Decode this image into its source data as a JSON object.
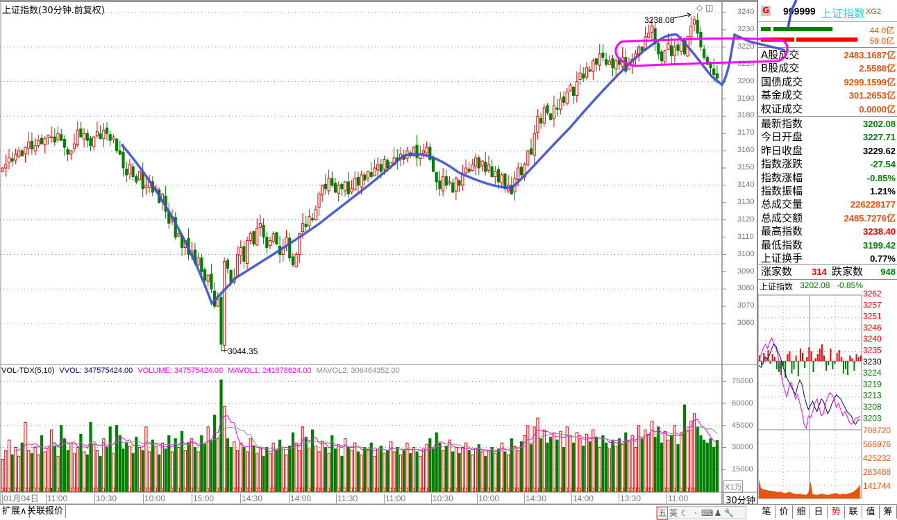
{
  "header": {
    "title": "上证指数(30分钟.前复权)",
    "high_mark": "3238.08",
    "low_mark": "3044.35"
  },
  "price_axis": [
    "3240",
    "3230",
    "3220",
    "3210",
    "3200",
    "3190",
    "3180",
    "3170",
    "3160",
    "3150",
    "3140",
    "3130",
    "3120",
    "3110",
    "3100",
    "3090",
    "3080",
    "3070",
    "3060"
  ],
  "volume_axis": [
    "75000",
    "60000",
    "45000",
    "30000",
    "15000"
  ],
  "volume_unit": "X1万",
  "period": "30分钟",
  "volume_legend": {
    "name": "VOL-TDX(5,10)",
    "vvol": "VVOL: 347575424.00",
    "volume": "VOLUME: 347575424.00",
    "mavol1": "MAVOL1: 241878624.00",
    "mavol2": "MAVOL2: 306464352.00"
  },
  "time_axis": [
    "01月04日",
    "11:00",
    "10:30",
    "10:00",
    "15:00",
    "14:30",
    "14:00",
    "11:30",
    "11:00",
    "10:30",
    "10:00",
    "14:30",
    "14:00",
    "13:30",
    "11:00"
  ],
  "chart_data": {
    "type": "candlestick",
    "ylim": [
      3040,
      3245
    ],
    "closes": [
      3150,
      3152,
      3156,
      3154,
      3158,
      3160,
      3157,
      3162,
      3165,
      3161,
      3163,
      3166,
      3164,
      3167,
      3169,
      3168,
      3165,
      3170,
      3166,
      3162,
      3158,
      3160,
      3164,
      3172,
      3168,
      3170,
      3166,
      3163,
      3168,
      3171,
      3167,
      3172,
      3170,
      3166,
      3168,
      3160,
      3158,
      3150,
      3146,
      3152,
      3145,
      3142,
      3148,
      3138,
      3140,
      3142,
      3136,
      3138,
      3130,
      3135,
      3125,
      3118,
      3122,
      3110,
      3112,
      3104,
      3108,
      3100,
      3102,
      3095,
      3098,
      3090,
      3085,
      3088,
      3080,
      3070,
      3074,
      3048,
      3096,
      3092,
      3084,
      3086,
      3100,
      3104,
      3096,
      3108,
      3112,
      3106,
      3115,
      3118,
      3110,
      3104,
      3108,
      3112,
      3106,
      3100,
      3104,
      3110,
      3098,
      3094,
      3100,
      3112,
      3118,
      3116,
      3122,
      3120,
      3126,
      3135,
      3140,
      3138,
      3144,
      3140,
      3136,
      3140,
      3138,
      3142,
      3135,
      3138,
      3144,
      3140,
      3146,
      3143,
      3148,
      3145,
      3150,
      3152,
      3148,
      3155,
      3150,
      3153,
      3156,
      3154,
      3158,
      3155,
      3160,
      3157,
      3162,
      3156,
      3158,
      3160,
      3162,
      3155,
      3148,
      3142,
      3138,
      3145,
      3140,
      3142,
      3136,
      3144,
      3140,
      3146,
      3150,
      3148,
      3152,
      3156,
      3150,
      3154,
      3148,
      3152,
      3145,
      3148,
      3142,
      3146,
      3138,
      3140,
      3135,
      3144,
      3150,
      3146,
      3152,
      3160,
      3158,
      3170,
      3180,
      3176,
      3185,
      3182,
      3178,
      3186,
      3184,
      3190,
      3188,
      3194,
      3198,
      3192,
      3200,
      3205,
      3202,
      3208,
      3206,
      3212,
      3210,
      3216,
      3214,
      3210,
      3212,
      3208,
      3212,
      3210,
      3214,
      3206,
      3210,
      3213,
      3216,
      3220,
      3218,
      3226,
      3228,
      3232,
      3222,
      3216,
      3212,
      3218,
      3222,
      3215,
      3220,
      3218,
      3224,
      3216,
      3226,
      3232,
      3236,
      3228,
      3220,
      3214,
      3210,
      3208,
      3204,
      3202.08
    ],
    "volumes_wan": [
      22000,
      28000,
      35000,
      25000,
      30000,
      24000,
      33000,
      47000,
      28000,
      26000,
      30000,
      25000,
      38000,
      27000,
      29000,
      42000,
      31000,
      24000,
      45000,
      36000,
      28000,
      33000,
      26000,
      30000,
      39000,
      27000,
      25000,
      47000,
      32000,
      28000,
      24000,
      36000,
      30000,
      44000,
      26000,
      45000,
      38000,
      29000,
      33000,
      31000,
      26000,
      37000,
      30000,
      28000,
      44000,
      27000,
      35000,
      31000,
      25000,
      33000,
      29000,
      38000,
      27000,
      36000,
      30000,
      41000,
      28000,
      33000,
      36000,
      30000,
      27000,
      38000,
      32000,
      44000,
      35000,
      52000,
      36000,
      76000,
      58000,
      36000,
      30000,
      34000,
      28000,
      33000,
      30000,
      27000,
      36000,
      31000,
      26000,
      29000,
      24000,
      30000,
      26000,
      33000,
      28000,
      35000,
      29000,
      25000,
      31000,
      40000,
      33000,
      28000,
      44000,
      37000,
      29000,
      42000,
      31000,
      27000,
      34000,
      30000,
      26000,
      38000,
      29000,
      32000,
      24000,
      36000,
      30000,
      28000,
      33000,
      27000,
      25000,
      30000,
      28000,
      33000,
      24000,
      29000,
      31000,
      26000,
      28000,
      34000,
      27000,
      30000,
      25000,
      28000,
      33000,
      26000,
      30000,
      27000,
      24000,
      29000,
      32000,
      36000,
      29000,
      40000,
      33000,
      28000,
      31000,
      35000,
      27000,
      30000,
      26000,
      30000,
      33000,
      28000,
      25000,
      29000,
      32000,
      27000,
      24000,
      28000,
      30000,
      26000,
      29000,
      33000,
      27000,
      25000,
      36000,
      31000,
      28000,
      34000,
      38000,
      45000,
      32000,
      44000,
      50000,
      36000,
      42000,
      33000,
      37000,
      40000,
      35000,
      41000,
      30000,
      44000,
      38000,
      33000,
      40000,
      36000,
      31000,
      39000,
      34000,
      42000,
      37000,
      30000,
      38000,
      33000,
      29000,
      35000,
      31000,
      36000,
      32000,
      40000,
      34000,
      38000,
      30000,
      45000,
      36000,
      42000,
      39000,
      48000,
      37000,
      44000,
      33000,
      41000,
      35000,
      38000,
      45000,
      32000,
      40000,
      59000,
      42000,
      48000,
      53000,
      44000,
      38000,
      35000,
      33000,
      36000,
      30000,
      34757
    ],
    "ma_periods": [
      5,
      10
    ],
    "colors": {
      "up": "#ff0000",
      "down": "#008000",
      "mavol1": "#ff00ff",
      "mavol2": "#888888"
    }
  },
  "quote": {
    "badge": "G",
    "code": "999999",
    "name": "上证指数",
    "tag": "XG2",
    "buy_amount": "44.0亿",
    "sell_amount": "59.0亿",
    "turnover": [
      {
        "label": "A股成交",
        "value": "2483.1687亿"
      },
      {
        "label": "B股成交",
        "value": "2.5588亿"
      },
      {
        "label": "国债成交",
        "value": "9299.1599亿"
      },
      {
        "label": "基金成交",
        "value": "301.2653亿"
      },
      {
        "label": "权证成交",
        "value": "0.0000亿"
      }
    ],
    "stats": [
      {
        "label": "最新指数",
        "value": "3202.08",
        "color": "#008000"
      },
      {
        "label": "今日开盘",
        "value": "3227.71",
        "color": "#008000"
      },
      {
        "label": "昨日收盘",
        "value": "3229.62",
        "color": "#000000"
      },
      {
        "label": "指数涨跌",
        "value": "-27.54",
        "color": "#008000"
      },
      {
        "label": "指数涨幅",
        "value": "-0.85%",
        "color": "#008000"
      },
      {
        "label": "指数振幅",
        "value": "1.21%",
        "color": "#000000"
      },
      {
        "label": "总成交量",
        "value": "226228177",
        "color": "#e8540e"
      },
      {
        "label": "总成交额",
        "value": "2485.7276亿",
        "color": "#e8540e"
      },
      {
        "label": "最高指数",
        "value": "3238.40",
        "color": "#ff0000"
      },
      {
        "label": "最低指数",
        "value": "3199.42",
        "color": "#008000"
      },
      {
        "label": "上证换手",
        "value": "0.77%",
        "color": "#000000"
      }
    ],
    "up_label": "涨家数",
    "up_count": "314",
    "down_label": "跌家数",
    "down_count": "948"
  },
  "mini_chart": {
    "title": "上证指数",
    "price": "3202.08",
    "change": "-0.85%",
    "axis_up": [
      "3262",
      "3257",
      "3251",
      "3246",
      "3240",
      "3235"
    ],
    "axis_mid": "3230",
    "axis_down": [
      "3224",
      "3219",
      "3213",
      "3208",
      "3203"
    ],
    "vol_axis": [
      "708720",
      "566976",
      "425232",
      "283488",
      "141744"
    ],
    "ylim": [
      3203,
      3262
    ],
    "line_a": [
      3228,
      3227,
      3229,
      3232,
      3231,
      3233,
      3236,
      3238,
      3237,
      3234,
      3232,
      3228,
      3225,
      3222,
      3220,
      3218,
      3216,
      3214,
      3218,
      3221,
      3219,
      3214,
      3210,
      3207,
      3209,
      3211,
      3208,
      3206,
      3209,
      3212,
      3211,
      3208,
      3205,
      3207,
      3210,
      3212,
      3214,
      3213,
      3212,
      3210,
      3208,
      3206,
      3205,
      3204,
      3201,
      3200,
      3202,
      3202
    ],
    "line_b": [
      3230,
      3233,
      3236,
      3238,
      3236,
      3239,
      3241,
      3238,
      3236,
      3232,
      3226,
      3220,
      3216,
      3213,
      3218,
      3220,
      3216,
      3212,
      3214,
      3210,
      3206,
      3200,
      3198,
      3204,
      3203,
      3206,
      3210,
      3212,
      3208,
      3204,
      3205,
      3210,
      3213,
      3215,
      3214,
      3212,
      3208,
      3210,
      3207,
      3204,
      3206,
      3204,
      3201,
      3200,
      3201,
      3203,
      3203,
      3204
    ],
    "updown": [
      4,
      -3,
      6,
      2,
      8,
      -2,
      5,
      3,
      -6,
      -8,
      -10,
      -4,
      -12,
      5,
      7,
      -9,
      -6,
      4,
      -11,
      9,
      6,
      -5,
      3,
      10,
      7,
      -8,
      2,
      5,
      9,
      12,
      4,
      -7,
      -3,
      9,
      -6,
      -2,
      6,
      8,
      3,
      -9,
      -6,
      -10,
      4,
      2,
      -7,
      5,
      3,
      4
    ],
    "volume": [
      200000,
      110000,
      95000,
      90000,
      85000,
      80000,
      78000,
      75000,
      70000,
      65000,
      72000,
      60000,
      55000,
      58000,
      70000,
      62000,
      52000,
      48000,
      45000,
      50000,
      42000,
      40000,
      38000,
      60000,
      180000,
      45000,
      40000,
      38000,
      42000,
      50000,
      45000,
      40000,
      38000,
      42000,
      48000,
      52000,
      55000,
      45000,
      40000,
      50000,
      45000,
      48000,
      55000,
      60000,
      70000,
      90000,
      110000,
      140000
    ]
  },
  "bottom": {
    "tabs": [
      "扩展∧",
      "关联报价"
    ],
    "ime": [
      "五",
      "英",
      "☾",
      "·",
      "⌨",
      "♟",
      "🔧"
    ],
    "right_tabs": [
      "笔",
      "价",
      "细",
      "日",
      "势",
      "联",
      "值",
      "筹"
    ]
  }
}
